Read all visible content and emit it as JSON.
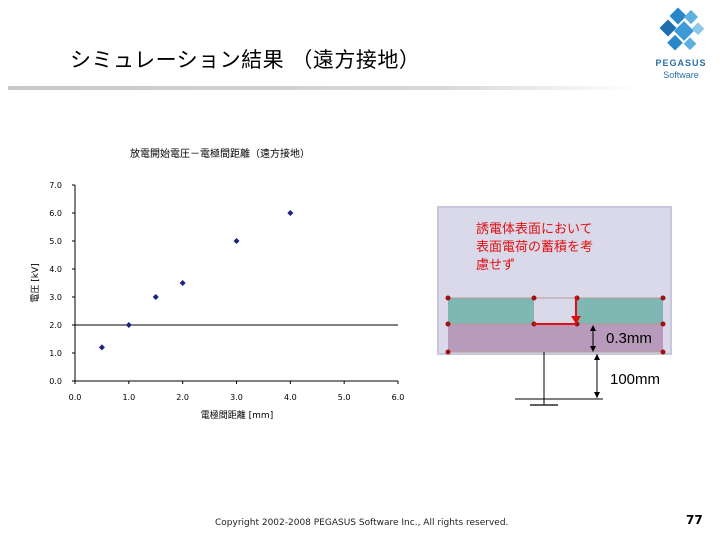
{
  "slide": {
    "title": "シミュレーション結果 （遠方接地）",
    "footer": "Copyright 2002-2008 PEGASUS Software Inc., All rights reserved.",
    "page_number": "77",
    "logo": {
      "brand": "PEGASUS",
      "sub": "Software"
    }
  },
  "annotation": {
    "text": "誘電体表面において\n表面電荷の蓄積を考\n慮せず",
    "thickness_label": "0.3mm",
    "distance_label": "100mm",
    "colors": {
      "box": "#d9d9ea",
      "electrode": "#7fb8b3",
      "dielectric": "#b89bbb",
      "dot": "#a01010",
      "arrow": "#e01010"
    }
  },
  "chart_data": {
    "type": "scatter",
    "title": "放電開始電圧－電極間距離（遠方接地）",
    "xlabel": "電極間距離 [mm]",
    "ylabel": "電圧 [kV]",
    "xlim": [
      0,
      6
    ],
    "ylim": [
      0,
      7
    ],
    "x_ticks": [
      "0.0",
      "1.0",
      "2.0",
      "3.0",
      "4.0",
      "5.0",
      "6.0"
    ],
    "y_ticks": [
      "0.0",
      "1.0",
      "2.0",
      "3.0",
      "4.0",
      "5.0",
      "6.0",
      "7.0"
    ],
    "points": [
      {
        "x": 0.5,
        "y": 1.2
      },
      {
        "x": 1.0,
        "y": 2.0
      },
      {
        "x": 1.5,
        "y": 3.0
      },
      {
        "x": 2.0,
        "y": 3.5
      },
      {
        "x": 3.0,
        "y": 5.0
      },
      {
        "x": 4.0,
        "y": 6.0
      }
    ],
    "reference_line_y": 2.0,
    "grid": false,
    "marker_color": "#1a237e"
  }
}
